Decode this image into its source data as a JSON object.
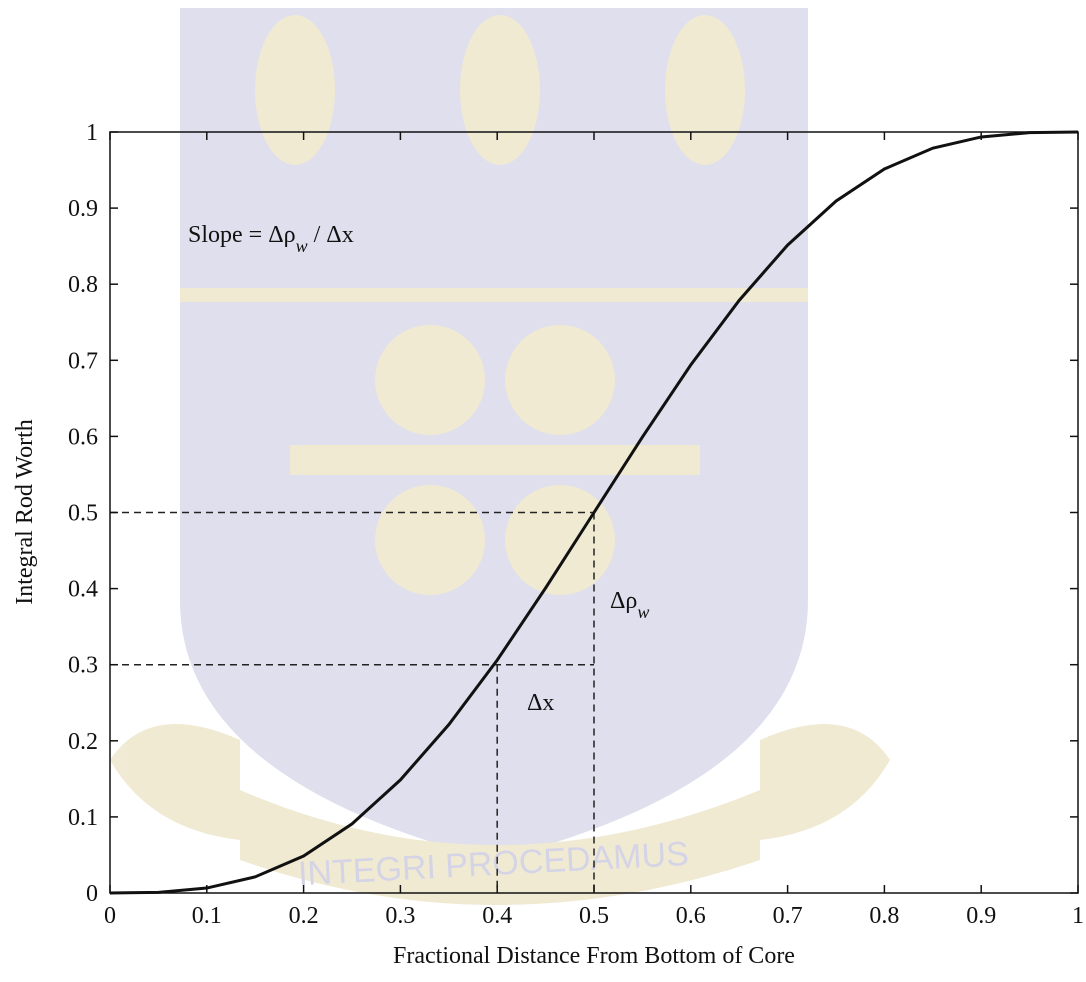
{
  "chart_data": {
    "type": "line",
    "xlabel": "Fractional Distance From Bottom of Core",
    "ylabel": "Integral Rod Worth",
    "watermark": "INTEGRI PROCEDAMUS",
    "x": [
      0,
      0.05,
      0.1,
      0.15,
      0.2,
      0.25,
      0.3,
      0.35,
      0.4,
      0.45,
      0.5,
      0.55,
      0.6,
      0.65,
      0.7,
      0.75,
      0.8,
      0.85,
      0.9,
      0.95,
      1
    ],
    "series": [
      {
        "color": "#111111",
        "values": [
          0,
          0.0008,
          0.0065,
          0.0212,
          0.0486,
          0.0908,
          0.1486,
          0.2212,
          0.306,
          0.4008,
          0.5,
          0.5992,
          0.694,
          0.7788,
          0.8514,
          0.9092,
          0.9514,
          0.9788,
          0.9935,
          0.9992,
          1
        ]
      }
    ],
    "guides": [
      {
        "x": 0.5,
        "y": 0.5
      },
      {
        "x": 0.4,
        "y": 0.3
      }
    ],
    "slope_label": [
      "Slope = Δρ",
      "w",
      " / Δx"
    ],
    "rho_label": [
      "Δρ",
      "w"
    ],
    "dx_label": "Δx",
    "xlim": [
      0,
      1
    ],
    "ylim": [
      0,
      1
    ],
    "xticks": [
      0,
      0.1,
      0.2,
      0.3,
      0.4,
      0.5,
      0.6,
      0.7,
      0.8,
      0.9,
      1
    ],
    "yticks": [
      0,
      0.1,
      0.2,
      0.3,
      0.4,
      0.5,
      0.6,
      0.7,
      0.8,
      0.9,
      1
    ],
    "grid": false
  }
}
